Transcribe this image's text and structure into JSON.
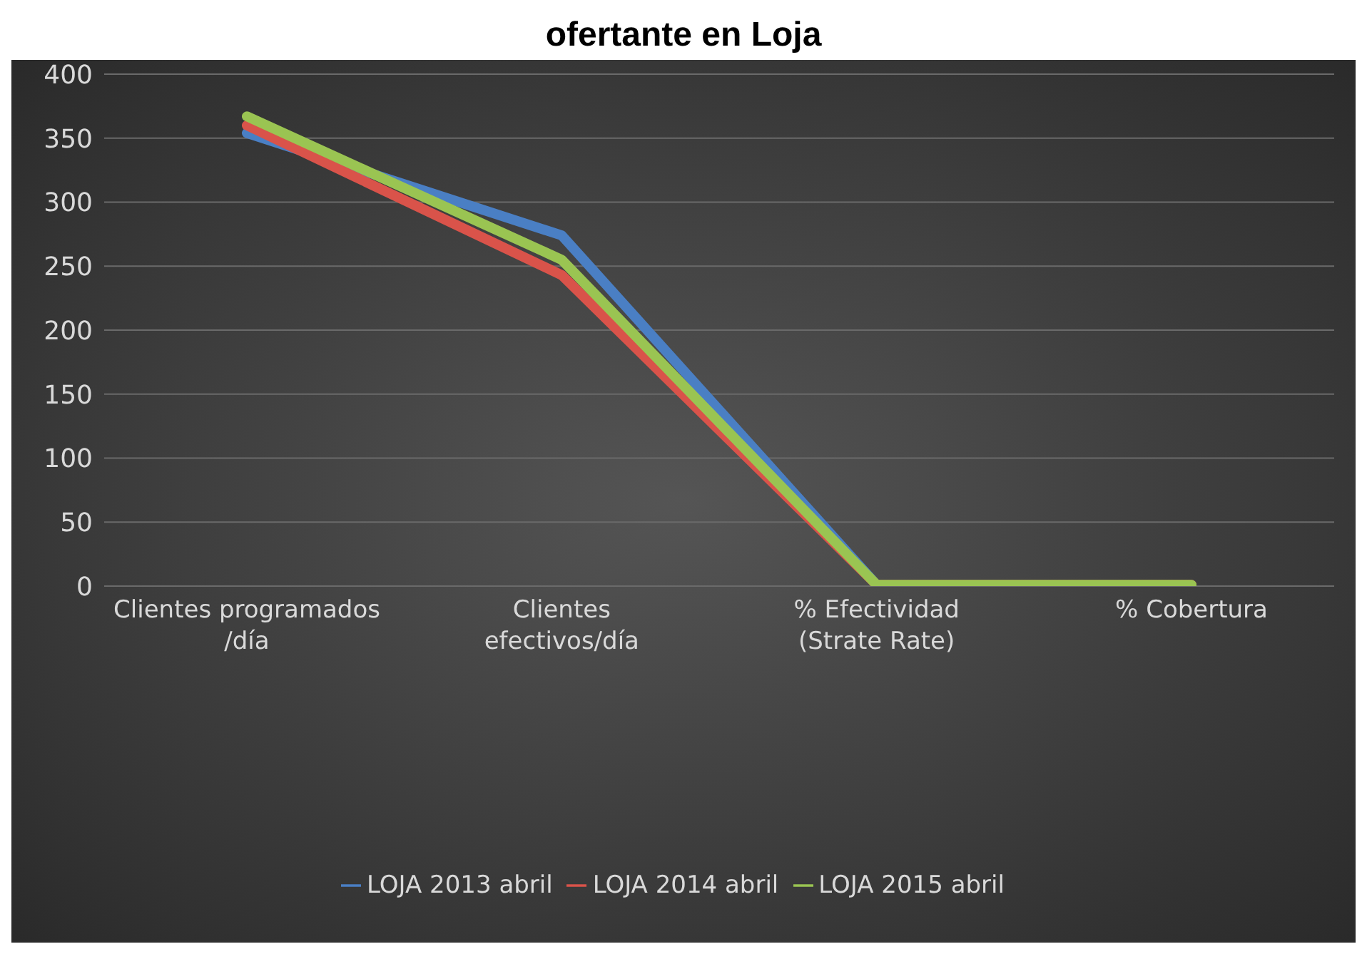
{
  "chart_data": {
    "type": "line",
    "title": "ofertante en Loja",
    "categories": [
      "Clientes programados /día",
      "Clientes efectivos/día",
      "% Efectividad (Strate Rate)",
      "% Cobertura"
    ],
    "series": [
      {
        "name": "LOJA 2013 abril",
        "color": "#4a7fc4",
        "values": [
          354,
          274,
          1,
          null
        ]
      },
      {
        "name": "LOJA 2014 abril",
        "color": "#d9534a",
        "values": [
          360,
          243,
          1,
          1
        ]
      },
      {
        "name": "LOJA 2015 abril",
        "color": "#9ac452",
        "values": [
          367,
          255,
          1,
          1
        ]
      }
    ],
    "ylim": [
      0,
      400
    ],
    "yticks": [
      0,
      50,
      100,
      150,
      200,
      250,
      300,
      350,
      400
    ],
    "grid": "y",
    "legend": "bottom",
    "marker": "none",
    "line_style": "solid"
  }
}
